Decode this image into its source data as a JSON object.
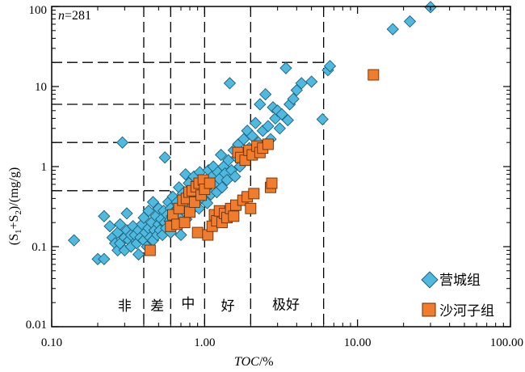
{
  "chart_data": {
    "type": "scatter",
    "x_scale": "log",
    "y_scale": "log",
    "xlim": [
      0.1,
      100
    ],
    "ylim": [
      0.01,
      100
    ],
    "x_ticks": [
      0.1,
      1,
      10,
      100
    ],
    "y_ticks": [
      0.01,
      0.1,
      1,
      10,
      100
    ],
    "x_tick_labels": [
      "0.10",
      "1.00",
      "10.00",
      "100.00"
    ],
    "y_tick_labels": [
      "0.01",
      "0.1",
      "1",
      "10",
      "100"
    ],
    "xlabel": {
      "main": "TOC",
      "suffix": "/%"
    },
    "ylabel": {
      "open": "(S",
      "sub1": "1",
      "plus": "+S",
      "sub2": "2",
      "close": ")/(mg/g)"
    },
    "annotation": {
      "italic": "n",
      "rest": "=281"
    },
    "legend_position": "bottom-right",
    "grading": {
      "vertical_lines": [
        0.4,
        0.6,
        1.0,
        2.0,
        6.0
      ],
      "steps": [
        {
          "x_start": 0.4,
          "x_end": 0.6,
          "y": 0.5
        },
        {
          "x_start": 0.6,
          "x_end": 1.0,
          "y": 2
        },
        {
          "x_start": 1.0,
          "x_end": 2.0,
          "y": 6
        },
        {
          "x_start": 2.0,
          "x_end": 6.0,
          "y": 20
        }
      ],
      "zone_labels": [
        {
          "text": "非",
          "x": 0.3,
          "y": 0.016
        },
        {
          "text": "差",
          "x": 0.49,
          "y": 0.016
        },
        {
          "text": "中",
          "x": 0.78,
          "y": 0.017
        },
        {
          "text": "好",
          "x": 1.42,
          "y": 0.016
        },
        {
          "text": "极好",
          "x": 3.4,
          "y": 0.0165
        }
      ]
    },
    "series": [
      {
        "name": "营城组",
        "marker": "diamond",
        "color": "#4fb9e0",
        "points": [
          [
            0.14,
            0.12
          ],
          [
            0.2,
            0.07
          ],
          [
            0.22,
            0.07
          ],
          [
            0.22,
            0.24
          ],
          [
            0.24,
            0.18
          ],
          [
            0.25,
            0.13
          ],
          [
            0.26,
            0.11
          ],
          [
            0.27,
            0.09
          ],
          [
            0.27,
            0.15
          ],
          [
            0.28,
            0.11
          ],
          [
            0.28,
            0.19
          ],
          [
            0.29,
            2.0
          ],
          [
            0.3,
            0.13
          ],
          [
            0.3,
            0.09
          ],
          [
            0.31,
            0.26
          ],
          [
            0.31,
            0.16
          ],
          [
            0.32,
            0.12
          ],
          [
            0.33,
            0.1
          ],
          [
            0.33,
            0.14
          ],
          [
            0.34,
            0.18
          ],
          [
            0.35,
            0.14
          ],
          [
            0.36,
            0.11
          ],
          [
            0.37,
            0.08
          ],
          [
            0.37,
            0.16
          ],
          [
            0.38,
            0.13
          ],
          [
            0.39,
            0.19
          ],
          [
            0.4,
            0.12
          ],
          [
            0.4,
            0.23
          ],
          [
            0.41,
            0.15
          ],
          [
            0.42,
            0.1
          ],
          [
            0.43,
            0.17
          ],
          [
            0.43,
            0.28
          ],
          [
            0.44,
            0.13
          ],
          [
            0.45,
            0.2
          ],
          [
            0.46,
            0.12
          ],
          [
            0.46,
            0.36
          ],
          [
            0.47,
            0.16
          ],
          [
            0.48,
            0.24
          ],
          [
            0.49,
            0.14
          ],
          [
            0.5,
            0.19
          ],
          [
            0.5,
            0.3
          ],
          [
            0.51,
            0.16
          ],
          [
            0.52,
            0.22
          ],
          [
            0.53,
            0.14
          ],
          [
            0.54,
            0.28
          ],
          [
            0.55,
            0.2
          ],
          [
            0.55,
            1.3
          ],
          [
            0.56,
            0.17
          ],
          [
            0.57,
            0.25
          ],
          [
            0.58,
            0.36
          ],
          [
            0.59,
            0.21
          ],
          [
            0.6,
            0.15
          ],
          [
            0.6,
            0.3
          ],
          [
            0.61,
            0.24
          ],
          [
            0.62,
            0.42
          ],
          [
            0.63,
            0.19
          ],
          [
            0.64,
            0.28
          ],
          [
            0.65,
            0.22
          ],
          [
            0.66,
            0.36
          ],
          [
            0.67,
            0.3
          ],
          [
            0.68,
            0.55
          ],
          [
            0.69,
            0.25
          ],
          [
            0.7,
            0.14
          ],
          [
            0.71,
            0.33
          ],
          [
            0.72,
            0.46
          ],
          [
            0.73,
            0.28
          ],
          [
            0.74,
            0.38
          ],
          [
            0.75,
            0.8
          ],
          [
            0.76,
            0.22
          ],
          [
            0.77,
            0.45
          ],
          [
            0.78,
            0.33
          ],
          [
            0.79,
            0.62
          ],
          [
            0.8,
            0.27
          ],
          [
            0.82,
            0.4
          ],
          [
            0.83,
            0.52
          ],
          [
            0.84,
            0.3
          ],
          [
            0.85,
            0.75
          ],
          [
            0.87,
            0.44
          ],
          [
            0.88,
            0.35
          ],
          [
            0.89,
            0.6
          ],
          [
            0.9,
            0.48
          ],
          [
            0.92,
            0.3
          ],
          [
            0.93,
            0.85
          ],
          [
            0.95,
            0.55
          ],
          [
            0.97,
            0.4
          ],
          [
            1.0,
            0.66
          ],
          [
            1.02,
            0.5
          ],
          [
            1.04,
            0.35
          ],
          [
            1.06,
            0.9
          ],
          [
            1.08,
            0.58
          ],
          [
            1.1,
            0.45
          ],
          [
            1.12,
            0.75
          ],
          [
            1.14,
            1.0
          ],
          [
            1.17,
            0.62
          ],
          [
            1.2,
            0.48
          ],
          [
            1.22,
            0.85
          ],
          [
            1.25,
            0.7
          ],
          [
            1.28,
            1.4
          ],
          [
            1.3,
            0.55
          ],
          [
            1.33,
            1.0
          ],
          [
            1.36,
            0.82
          ],
          [
            1.4,
            0.68
          ],
          [
            1.43,
            1.2
          ],
          [
            1.46,
            11.0
          ],
          [
            1.5,
            0.9
          ],
          [
            1.55,
            1.6
          ],
          [
            1.58,
            0.75
          ],
          [
            1.62,
            1.3
          ],
          [
            1.66,
            1.9
          ],
          [
            1.7,
            1.0
          ],
          [
            1.75,
            1.5
          ],
          [
            1.8,
            2.2
          ],
          [
            1.85,
            1.2
          ],
          [
            1.9,
            2.8
          ],
          [
            1.96,
            1.7
          ],
          [
            2.05,
            2.4
          ],
          [
            2.1,
            1.4
          ],
          [
            2.15,
            3.5
          ],
          [
            2.25,
            2.0
          ],
          [
            2.3,
            6.0
          ],
          [
            2.4,
            2.8
          ],
          [
            2.5,
            8.0
          ],
          [
            2.6,
            3.2
          ],
          [
            2.7,
            2.2
          ],
          [
            2.8,
            5.5
          ],
          [
            2.9,
            4.0
          ],
          [
            3.0,
            5.0
          ],
          [
            3.1,
            3.0
          ],
          [
            3.2,
            4.5
          ],
          [
            3.4,
            17.0
          ],
          [
            3.5,
            3.8
          ],
          [
            3.6,
            6.0
          ],
          [
            3.8,
            7.0
          ],
          [
            4.0,
            9.0
          ],
          [
            4.3,
            11.0
          ],
          [
            5.0,
            11.5
          ],
          [
            5.9,
            3.9
          ],
          [
            6.4,
            16.0
          ],
          [
            6.6,
            18.0
          ],
          [
            17.0,
            52.0
          ],
          [
            22.0,
            65.0
          ],
          [
            30.0,
            98.0
          ]
        ]
      },
      {
        "name": "沙河子组",
        "marker": "square",
        "color": "#f07d2d",
        "points": [
          [
            0.44,
            0.09
          ],
          [
            0.6,
            0.18
          ],
          [
            0.62,
            0.25
          ],
          [
            0.66,
            0.19
          ],
          [
            0.68,
            0.3
          ],
          [
            0.72,
            0.38
          ],
          [
            0.74,
            0.2
          ],
          [
            0.76,
            0.4
          ],
          [
            0.79,
            0.48
          ],
          [
            0.8,
            0.27
          ],
          [
            0.83,
            0.5
          ],
          [
            0.86,
            0.36
          ],
          [
            0.88,
            0.56
          ],
          [
            0.9,
            0.15
          ],
          [
            0.92,
            0.62
          ],
          [
            0.95,
            0.44
          ],
          [
            0.98,
            0.68
          ],
          [
            1.0,
            0.52
          ],
          [
            1.05,
            0.14
          ],
          [
            1.08,
            0.62
          ],
          [
            1.12,
            0.18
          ],
          [
            1.16,
            0.25
          ],
          [
            1.2,
            0.21
          ],
          [
            1.25,
            0.28
          ],
          [
            1.3,
            0.2
          ],
          [
            1.35,
            0.26
          ],
          [
            1.4,
            0.23
          ],
          [
            1.48,
            0.3
          ],
          [
            1.55,
            0.24
          ],
          [
            1.6,
            0.33
          ],
          [
            1.65,
            1.5
          ],
          [
            1.72,
            1.3
          ],
          [
            1.78,
            0.38
          ],
          [
            1.84,
            1.2
          ],
          [
            1.9,
            0.42
          ],
          [
            1.95,
            1.6
          ],
          [
            2.0,
            0.3
          ],
          [
            2.05,
            1.4
          ],
          [
            2.1,
            0.46
          ],
          [
            2.2,
            1.8
          ],
          [
            2.3,
            1.5
          ],
          [
            2.4,
            1.7
          ],
          [
            2.6,
            1.9
          ],
          [
            2.7,
            0.55
          ],
          [
            2.75,
            0.62
          ],
          [
            12.7,
            14.0
          ]
        ]
      }
    ]
  }
}
